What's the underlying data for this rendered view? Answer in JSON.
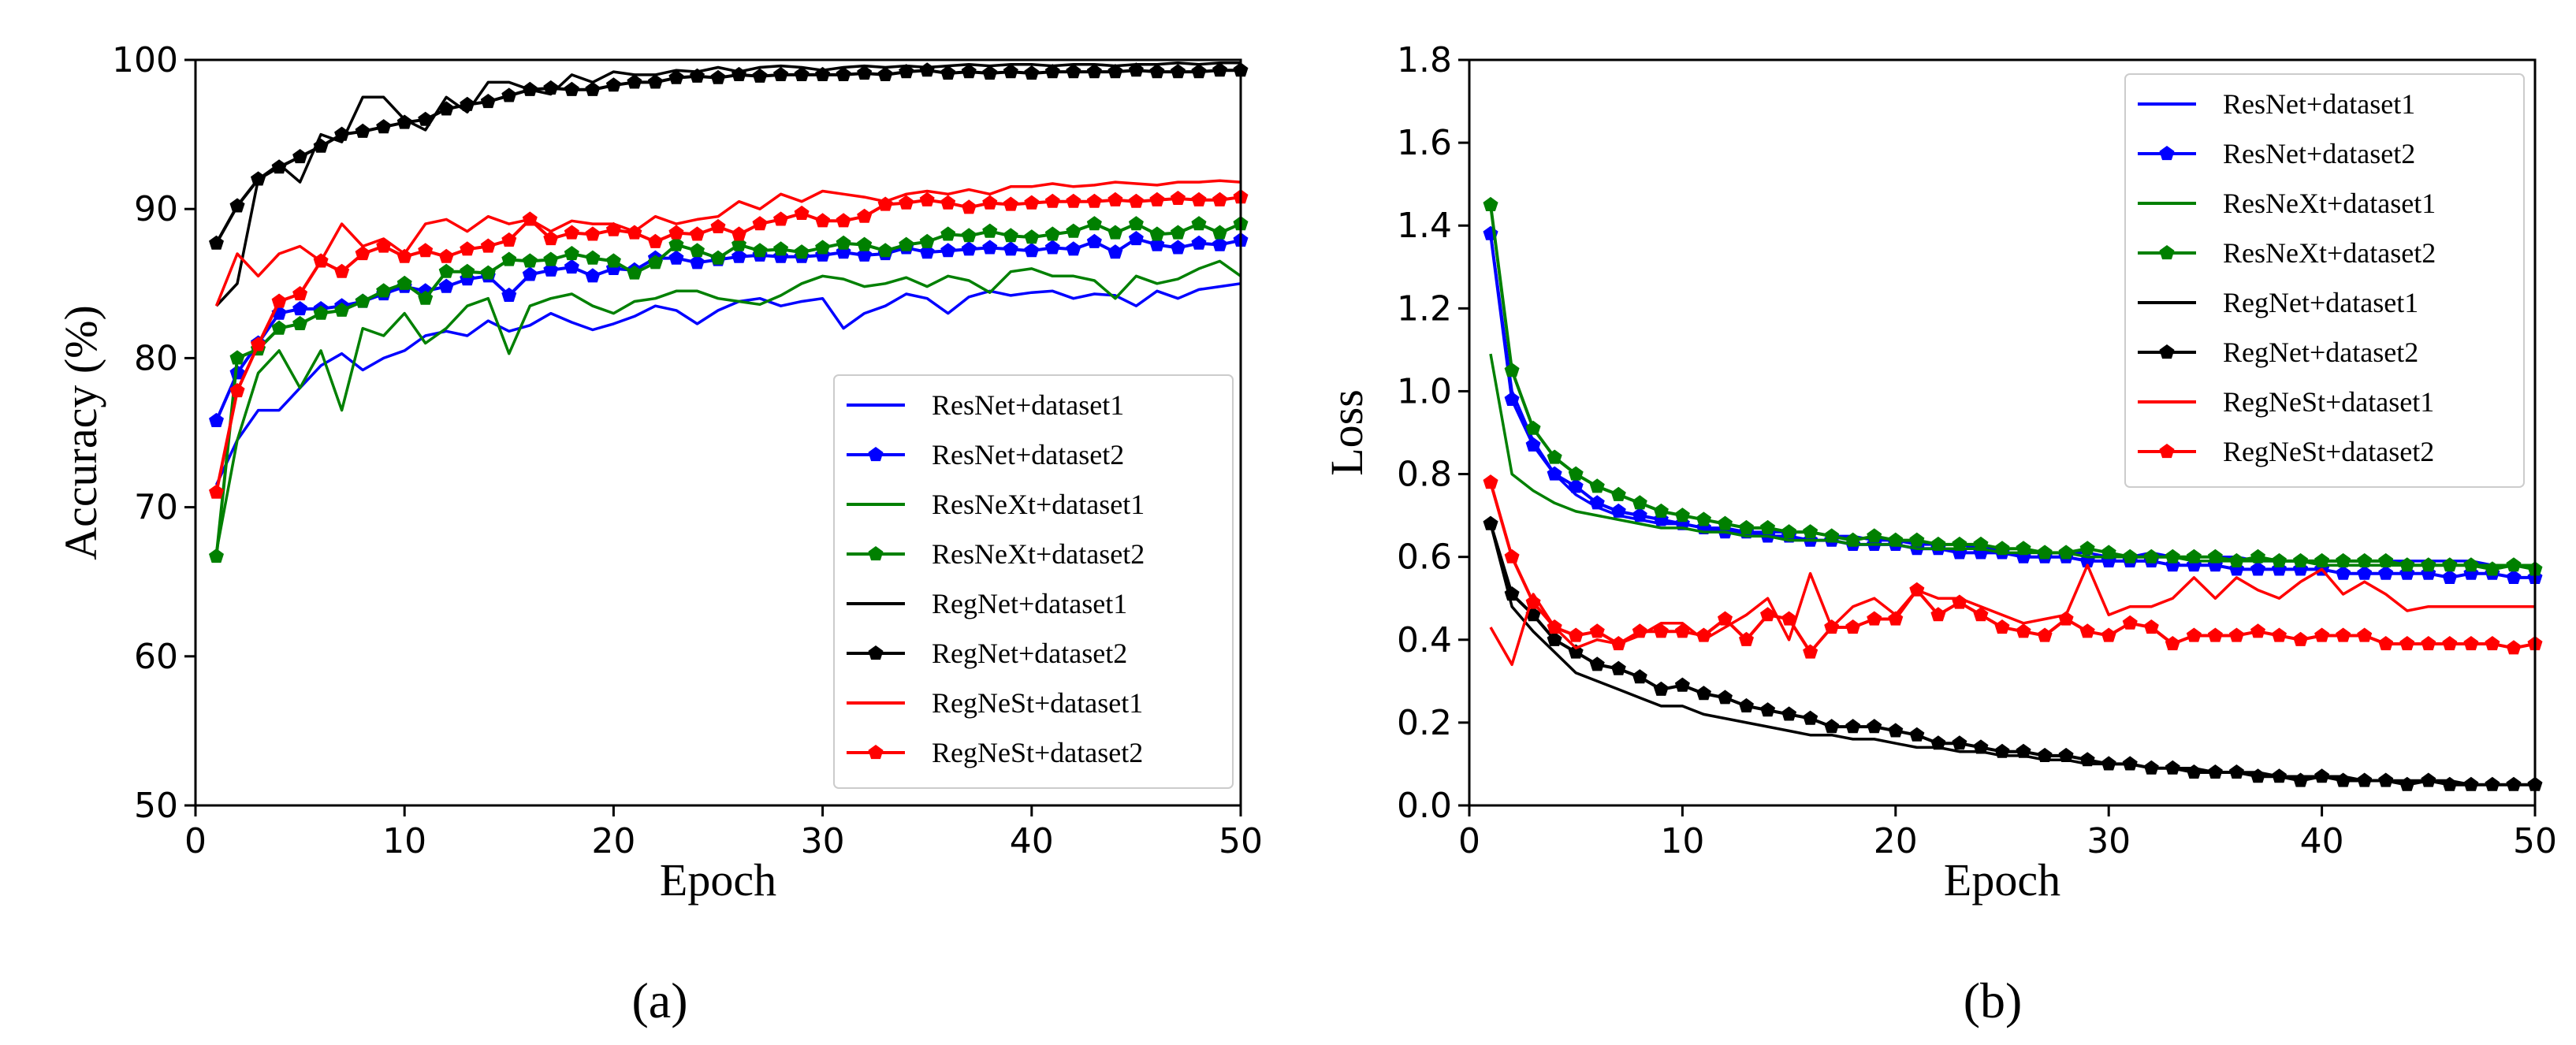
{
  "chart_data": [
    {
      "type": "line",
      "panel_label": "(a)",
      "xlabel": "Epoch",
      "ylabel": "Accuracy (%)",
      "xlim": [
        0,
        50
      ],
      "ylim": [
        50,
        100
      ],
      "xticks": [
        "0",
        "10",
        "20",
        "30",
        "40",
        "50"
      ],
      "yticks": [
        "50",
        "60",
        "70",
        "80",
        "90",
        "100"
      ],
      "legend_position": "lower-right",
      "x": [
        1,
        2,
        3,
        4,
        5,
        6,
        7,
        8,
        9,
        10,
        11,
        12,
        13,
        14,
        15,
        16,
        17,
        18,
        19,
        20,
        21,
        22,
        23,
        24,
        25,
        26,
        27,
        28,
        29,
        30,
        31,
        32,
        33,
        34,
        35,
        36,
        37,
        38,
        39,
        40,
        41,
        42,
        43,
        44,
        45,
        46,
        47,
        48,
        49,
        50
      ],
      "series": [
        {
          "name": "ResNet+dataset1",
          "color": "#0000ff",
          "marker": false,
          "values": [
            71.5,
            74.5,
            76.5,
            76.5,
            78,
            79.5,
            80.3,
            79.2,
            80,
            80.5,
            81.5,
            81.8,
            81.5,
            82.5,
            81.8,
            82.2,
            83,
            82.4,
            81.9,
            82.3,
            82.8,
            83.5,
            83.2,
            82.3,
            83.2,
            83.8,
            84,
            83.5,
            83.8,
            84,
            82,
            83,
            83.5,
            84.3,
            84,
            83,
            84.1,
            84.5,
            84.2,
            84.4,
            84.5,
            84,
            84.3,
            84.2,
            83.5,
            84.5,
            84,
            84.6,
            84.8,
            85
          ]
        },
        {
          "name": "ResNet+dataset2",
          "color": "#0000ff",
          "marker": true,
          "values": [
            75.8,
            79,
            81,
            83,
            83.3,
            83.3,
            83.5,
            83.8,
            84.3,
            84.8,
            84.5,
            84.8,
            85.3,
            85.5,
            84.2,
            85.6,
            85.9,
            86.1,
            85.5,
            86,
            85.9,
            86.7,
            86.7,
            86.4,
            86.6,
            86.8,
            86.9,
            86.8,
            86.8,
            86.9,
            87.1,
            86.9,
            87,
            87.4,
            87.1,
            87.2,
            87.3,
            87.4,
            87.3,
            87.2,
            87.4,
            87.3,
            87.8,
            87.1,
            88,
            87.6,
            87.4,
            87.7,
            87.6,
            87.9
          ]
        },
        {
          "name": "ResNeXt+dataset1",
          "color": "#008000",
          "marker": false,
          "values": [
            67,
            74.5,
            79,
            80.5,
            78,
            80.5,
            76.5,
            82,
            81.5,
            83,
            81,
            82,
            83.5,
            84,
            80.3,
            83.5,
            84,
            84.3,
            83.5,
            83,
            83.8,
            84,
            84.5,
            84.5,
            84,
            83.8,
            83.6,
            84.2,
            85,
            85.5,
            85.3,
            84.8,
            85,
            85.4,
            84.8,
            85.5,
            85.2,
            84.4,
            85.8,
            86,
            85.5,
            85.5,
            85.2,
            84,
            85.5,
            85,
            85.3,
            86,
            86.5,
            85.5
          ]
        },
        {
          "name": "ResNeXt+dataset2",
          "color": "#008000",
          "marker": true,
          "values": [
            66.7,
            80,
            80.6,
            82,
            82.3,
            83,
            83.2,
            83.8,
            84.5,
            85,
            84,
            85.8,
            85.8,
            85.7,
            86.6,
            86.5,
            86.6,
            87,
            86.7,
            86.5,
            85.7,
            86.4,
            87.6,
            87.2,
            86.7,
            87.6,
            87.2,
            87.3,
            87.1,
            87.4,
            87.7,
            87.6,
            87.2,
            87.6,
            87.8,
            88.3,
            88.2,
            88.5,
            88.2,
            88.1,
            88.3,
            88.5,
            89,
            88.4,
            89,
            88.3,
            88.4,
            89,
            88.4,
            89
          ]
        },
        {
          "name": "RegNet+dataset1",
          "color": "#000000",
          "marker": false,
          "values": [
            83.5,
            85,
            92,
            93,
            91.8,
            95,
            94.5,
            97.5,
            97.5,
            96,
            95.3,
            97.5,
            96.5,
            98.5,
            98.5,
            98,
            97.7,
            99,
            98.5,
            99.2,
            99,
            99,
            99.3,
            99.2,
            99.5,
            99.2,
            99.5,
            99.6,
            99.5,
            99.3,
            99.5,
            99.6,
            99.5,
            99.6,
            99.5,
            99.6,
            99.7,
            99.6,
            99.7,
            99.7,
            99.6,
            99.7,
            99.7,
            99.6,
            99.7,
            99.7,
            99.8,
            99.7,
            99.8,
            99.8
          ]
        },
        {
          "name": "RegNet+dataset2",
          "color": "#000000",
          "marker": true,
          "values": [
            87.7,
            90.2,
            92,
            92.8,
            93.5,
            94.2,
            95,
            95.2,
            95.5,
            95.8,
            96,
            96.7,
            97,
            97.2,
            97.6,
            98,
            98.1,
            98,
            98,
            98.3,
            98.5,
            98.5,
            98.8,
            98.9,
            98.8,
            99,
            98.9,
            99,
            99,
            99,
            99,
            99.1,
            99,
            99.2,
            99.3,
            99.1,
            99.2,
            99.1,
            99.2,
            99.1,
            99.2,
            99.2,
            99.2,
            99.2,
            99.3,
            99.2,
            99.2,
            99.2,
            99.3,
            99.3
          ]
        },
        {
          "name": "RegNeSt+dataset1",
          "color": "#ff0000",
          "marker": false,
          "values": [
            83.5,
            87,
            85.5,
            87,
            87.5,
            86.5,
            89,
            87.5,
            88,
            87,
            89,
            89.3,
            88.5,
            89.5,
            89,
            89.3,
            88.5,
            89.2,
            89,
            89,
            88.5,
            89.5,
            89,
            89.3,
            89.5,
            90.5,
            90,
            91,
            90.5,
            91.2,
            91,
            90.8,
            90.5,
            91,
            91.2,
            91,
            91.3,
            91,
            91.5,
            91.5,
            91.7,
            91.5,
            91.6,
            91.8,
            91.7,
            91.6,
            91.8,
            91.8,
            91.9,
            91.8
          ]
        },
        {
          "name": "RegNeSt+dataset2",
          "color": "#ff0000",
          "marker": true,
          "values": [
            71,
            77.8,
            80.9,
            83.8,
            84.3,
            86.5,
            85.8,
            87,
            87.5,
            86.8,
            87.2,
            86.8,
            87.3,
            87.5,
            87.9,
            89.3,
            88,
            88.4,
            88.3,
            88.6,
            88.4,
            87.8,
            88.4,
            88.3,
            88.8,
            88.3,
            89,
            89.3,
            89.7,
            89.2,
            89.2,
            89.5,
            90.3,
            90.4,
            90.6,
            90.4,
            90.1,
            90.4,
            90.3,
            90.4,
            90.5,
            90.5,
            90.5,
            90.6,
            90.5,
            90.6,
            90.7,
            90.6,
            90.6,
            90.8
          ]
        }
      ]
    },
    {
      "type": "line",
      "panel_label": "(b)",
      "xlabel": "Epoch",
      "ylabel": "Loss",
      "xlim": [
        0,
        50
      ],
      "ylim": [
        0,
        1.8
      ],
      "xticks": [
        "0",
        "10",
        "20",
        "30",
        "40",
        "50"
      ],
      "yticks": [
        "0.0",
        "0.2",
        "0.4",
        "0.6",
        "0.8",
        "1.0",
        "1.2",
        "1.4",
        "1.6",
        "1.8"
      ],
      "legend_position": "top-right",
      "x": [
        1,
        2,
        3,
        4,
        5,
        6,
        7,
        8,
        9,
        10,
        11,
        12,
        13,
        14,
        15,
        16,
        17,
        18,
        19,
        20,
        21,
        22,
        23,
        24,
        25,
        26,
        27,
        28,
        29,
        30,
        31,
        32,
        33,
        34,
        35,
        36,
        37,
        38,
        39,
        40,
        41,
        42,
        43,
        44,
        45,
        46,
        47,
        48,
        49,
        50
      ],
      "series": [
        {
          "name": "ResNet+dataset1",
          "color": "#0000ff",
          "marker": false,
          "values": [
            1.38,
            1,
            0.88,
            0.8,
            0.75,
            0.72,
            0.7,
            0.69,
            0.68,
            0.68,
            0.67,
            0.67,
            0.66,
            0.66,
            0.66,
            0.66,
            0.65,
            0.65,
            0.64,
            0.64,
            0.63,
            0.63,
            0.63,
            0.62,
            0.62,
            0.62,
            0.61,
            0.61,
            0.61,
            0.6,
            0.6,
            0.61,
            0.6,
            0.6,
            0.6,
            0.6,
            0.59,
            0.59,
            0.59,
            0.59,
            0.59,
            0.59,
            0.59,
            0.59,
            0.59,
            0.59,
            0.59,
            0.58,
            0.58,
            0.58
          ]
        },
        {
          "name": "ResNet+dataset2",
          "color": "#0000ff",
          "marker": true,
          "values": [
            1.38,
            0.98,
            0.87,
            0.8,
            0.77,
            0.73,
            0.71,
            0.7,
            0.69,
            0.68,
            0.67,
            0.66,
            0.66,
            0.65,
            0.65,
            0.64,
            0.64,
            0.63,
            0.63,
            0.63,
            0.62,
            0.62,
            0.61,
            0.61,
            0.61,
            0.6,
            0.6,
            0.6,
            0.59,
            0.59,
            0.59,
            0.59,
            0.58,
            0.58,
            0.58,
            0.57,
            0.57,
            0.57,
            0.57,
            0.57,
            0.56,
            0.56,
            0.56,
            0.56,
            0.56,
            0.55,
            0.56,
            0.56,
            0.55,
            0.55
          ]
        },
        {
          "name": "ResNeXt+dataset1",
          "color": "#008000",
          "marker": false,
          "values": [
            1.09,
            0.8,
            0.76,
            0.73,
            0.71,
            0.7,
            0.69,
            0.68,
            0.67,
            0.67,
            0.66,
            0.66,
            0.65,
            0.65,
            0.64,
            0.64,
            0.64,
            0.63,
            0.63,
            0.63,
            0.62,
            0.62,
            0.62,
            0.62,
            0.61,
            0.61,
            0.61,
            0.61,
            0.6,
            0.6,
            0.6,
            0.6,
            0.6,
            0.59,
            0.59,
            0.59,
            0.59,
            0.59,
            0.59,
            0.58,
            0.58,
            0.58,
            0.58,
            0.58,
            0.58,
            0.58,
            0.58,
            0.58,
            0.58,
            0.58
          ]
        },
        {
          "name": "ResNeXt+dataset2",
          "color": "#008000",
          "marker": true,
          "values": [
            1.45,
            1.05,
            0.91,
            0.84,
            0.8,
            0.77,
            0.75,
            0.73,
            0.71,
            0.7,
            0.69,
            0.68,
            0.67,
            0.67,
            0.66,
            0.66,
            0.65,
            0.64,
            0.65,
            0.64,
            0.64,
            0.63,
            0.63,
            0.63,
            0.62,
            0.62,
            0.61,
            0.61,
            0.62,
            0.61,
            0.6,
            0.6,
            0.6,
            0.6,
            0.6,
            0.59,
            0.6,
            0.59,
            0.59,
            0.59,
            0.59,
            0.59,
            0.59,
            0.58,
            0.58,
            0.58,
            0.58,
            0.57,
            0.58,
            0.57
          ]
        },
        {
          "name": "RegNet+dataset1",
          "color": "#000000",
          "marker": false,
          "values": [
            0.68,
            0.48,
            0.42,
            0.37,
            0.32,
            0.3,
            0.28,
            0.26,
            0.24,
            0.24,
            0.22,
            0.21,
            0.2,
            0.19,
            0.18,
            0.17,
            0.17,
            0.16,
            0.16,
            0.15,
            0.14,
            0.14,
            0.13,
            0.13,
            0.12,
            0.12,
            0.11,
            0.11,
            0.1,
            0.1,
            0.1,
            0.09,
            0.09,
            0.09,
            0.08,
            0.08,
            0.08,
            0.07,
            0.07,
            0.07,
            0.07,
            0.06,
            0.06,
            0.06,
            0.06,
            0.06,
            0.05,
            0.05,
            0.05,
            0.05
          ]
        },
        {
          "name": "RegNet+dataset2",
          "color": "#000000",
          "marker": true,
          "values": [
            0.68,
            0.51,
            0.46,
            0.4,
            0.37,
            0.34,
            0.33,
            0.31,
            0.28,
            0.29,
            0.27,
            0.26,
            0.24,
            0.23,
            0.22,
            0.21,
            0.19,
            0.19,
            0.19,
            0.18,
            0.17,
            0.15,
            0.15,
            0.14,
            0.13,
            0.13,
            0.12,
            0.12,
            0.11,
            0.1,
            0.1,
            0.09,
            0.09,
            0.08,
            0.08,
            0.08,
            0.07,
            0.07,
            0.06,
            0.07,
            0.06,
            0.06,
            0.06,
            0.05,
            0.06,
            0.05,
            0.05,
            0.05,
            0.05,
            0.05
          ]
        },
        {
          "name": "RegNeSt+dataset1",
          "color": "#ff0000",
          "marker": false,
          "values": [
            0.43,
            0.34,
            0.51,
            0.43,
            0.38,
            0.4,
            0.39,
            0.41,
            0.44,
            0.44,
            0.4,
            0.43,
            0.46,
            0.5,
            0.4,
            0.56,
            0.43,
            0.48,
            0.5,
            0.46,
            0.52,
            0.5,
            0.5,
            0.48,
            0.46,
            0.44,
            0.45,
            0.46,
            0.58,
            0.46,
            0.48,
            0.48,
            0.5,
            0.55,
            0.5,
            0.55,
            0.52,
            0.5,
            0.54,
            0.57,
            0.51,
            0.54,
            0.51,
            0.47,
            0.48,
            0.48,
            0.48,
            0.48,
            0.48,
            0.48
          ]
        },
        {
          "name": "RegNeSt+dataset2",
          "color": "#ff0000",
          "marker": true,
          "values": [
            0.78,
            0.6,
            0.49,
            0.43,
            0.41,
            0.42,
            0.39,
            0.42,
            0.42,
            0.42,
            0.41,
            0.45,
            0.4,
            0.46,
            0.45,
            0.37,
            0.43,
            0.43,
            0.45,
            0.45,
            0.52,
            0.46,
            0.49,
            0.46,
            0.43,
            0.42,
            0.41,
            0.45,
            0.42,
            0.41,
            0.44,
            0.43,
            0.39,
            0.41,
            0.41,
            0.41,
            0.42,
            0.41,
            0.4,
            0.41,
            0.41,
            0.41,
            0.39,
            0.39,
            0.39,
            0.39,
            0.39,
            0.39,
            0.38,
            0.39
          ]
        }
      ]
    }
  ]
}
